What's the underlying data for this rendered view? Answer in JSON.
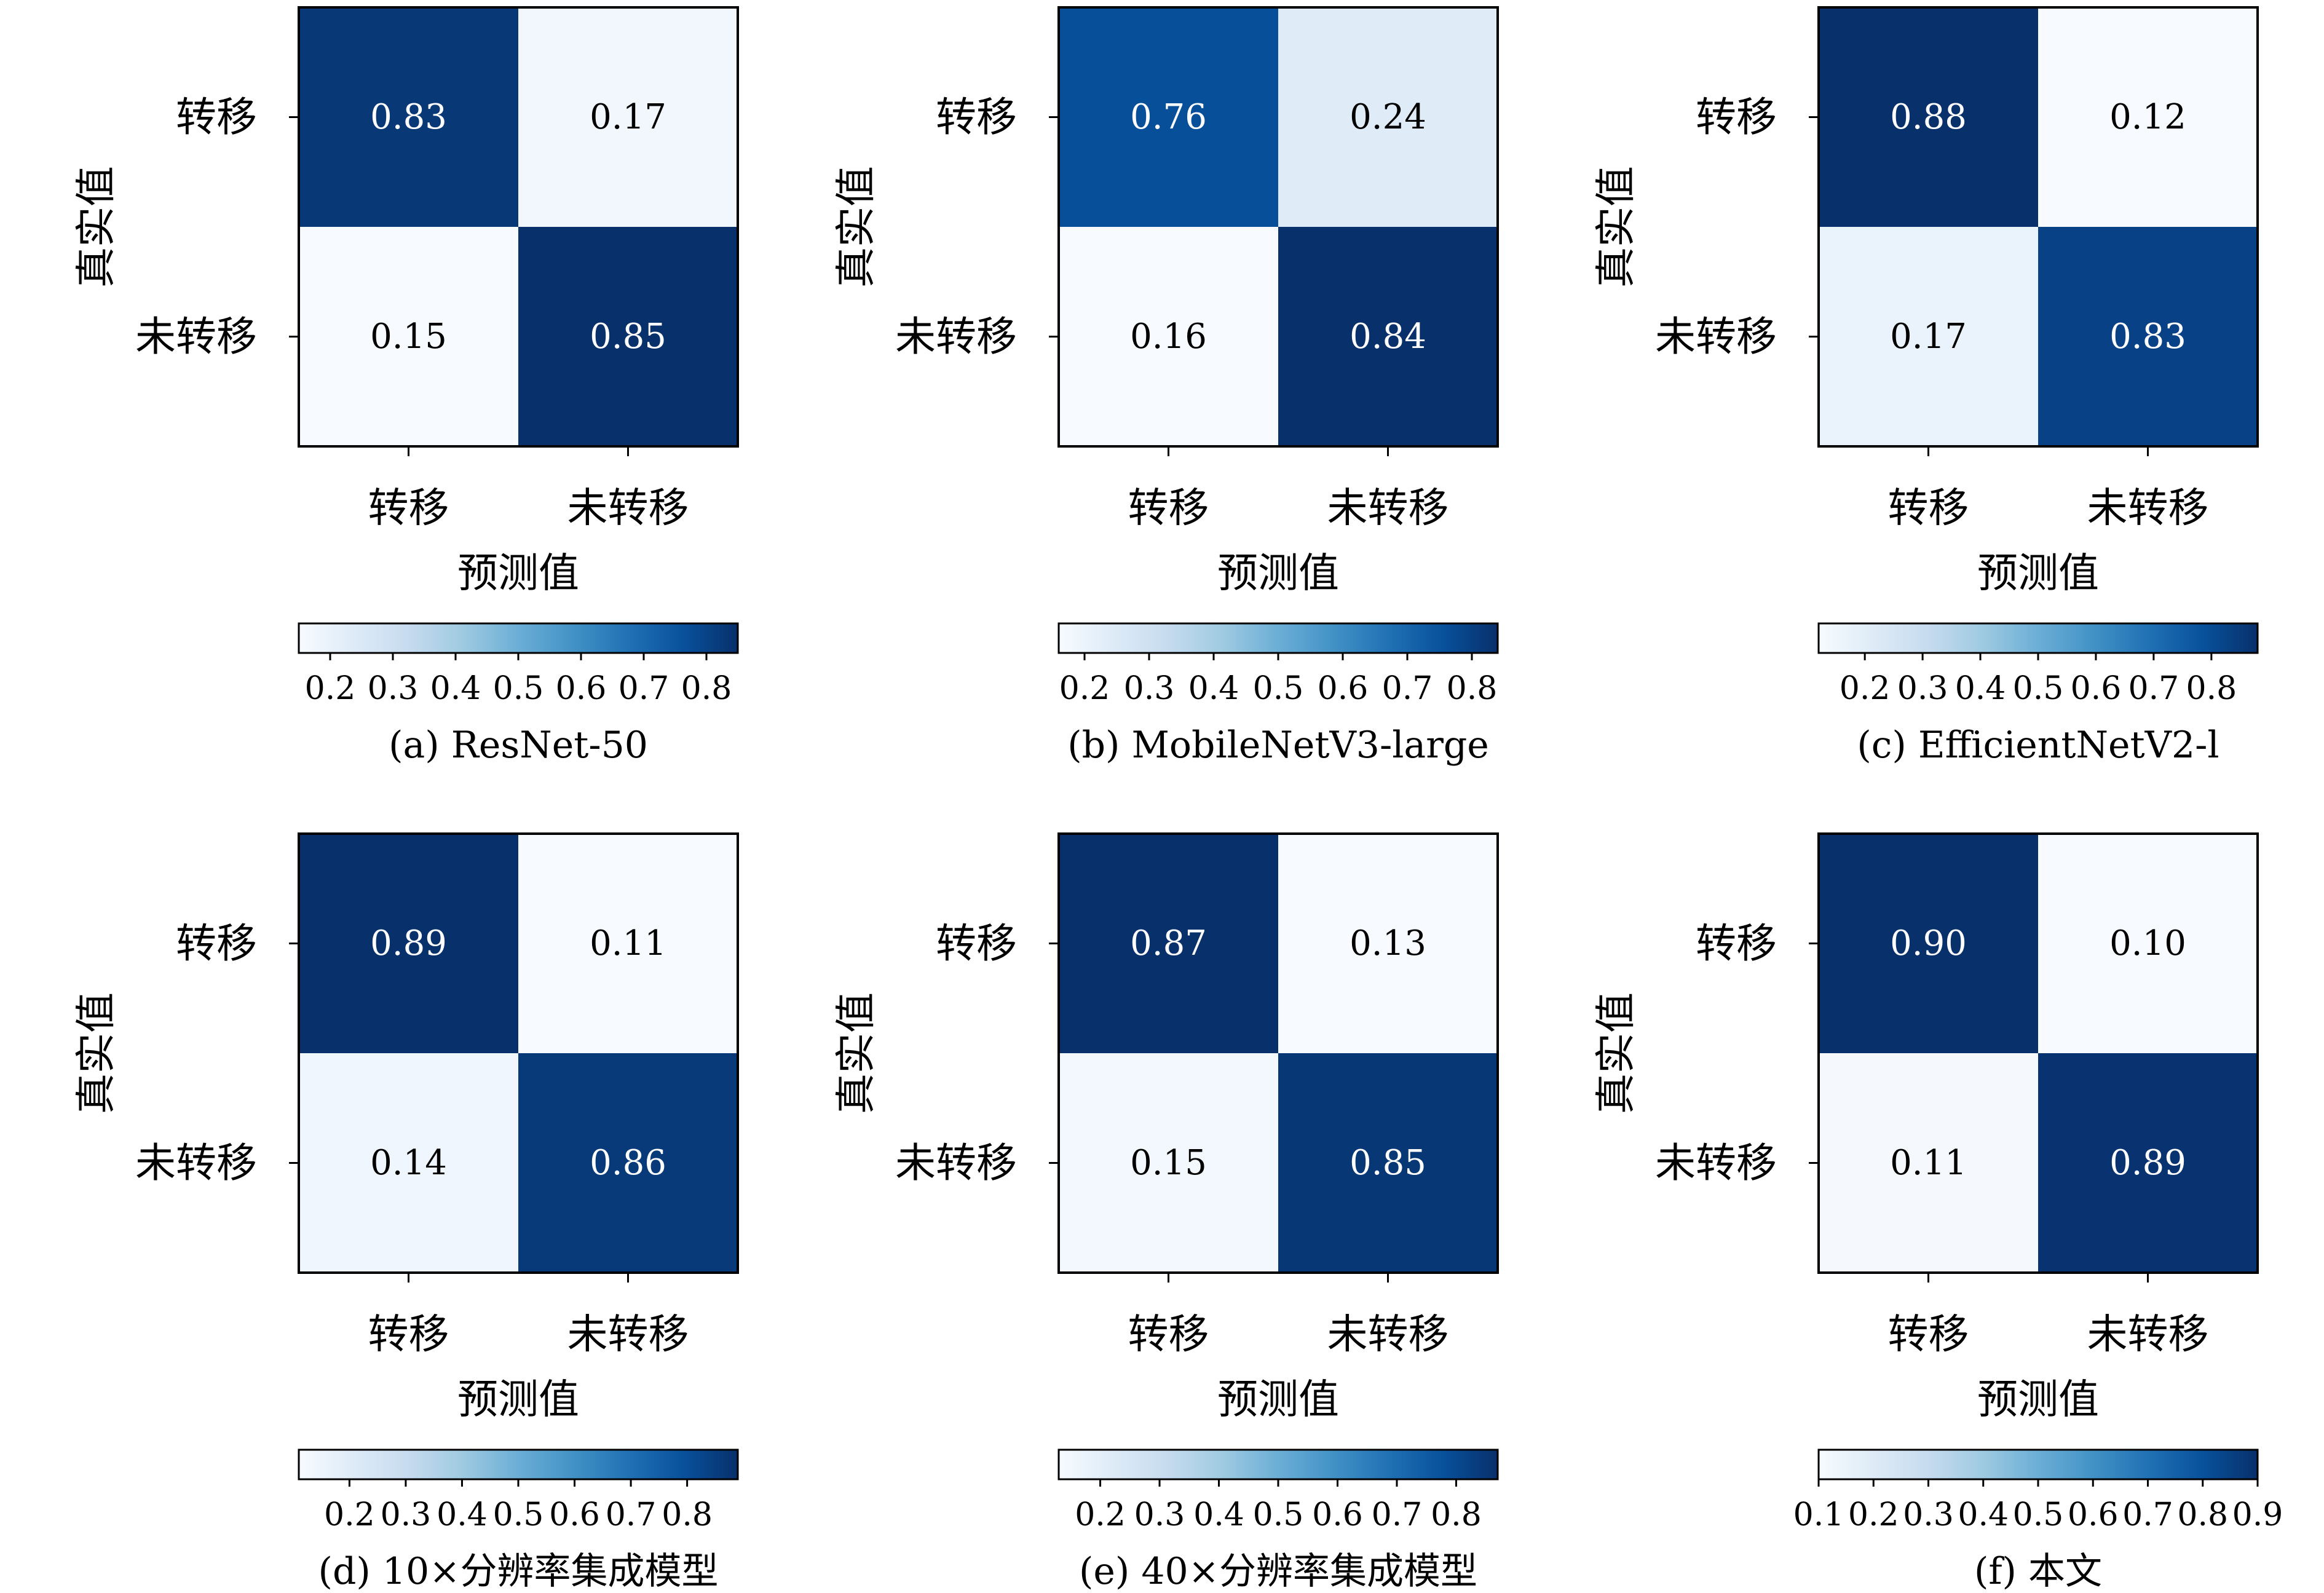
{
  "colormap": {
    "name": "Blues",
    "stops": [
      "#f7fbff",
      "#deebf7",
      "#c6dbef",
      "#9ecae1",
      "#6baed6",
      "#4292c6",
      "#2171b5",
      "#08519c",
      "#08306b"
    ],
    "frame_color": "#000000"
  },
  "chart_data": [
    {
      "type": "heatmap",
      "caption": "(a) ResNet-50",
      "xlabel": "预测值",
      "ylabel": "真实值",
      "x_categories": [
        "转移",
        "未转移"
      ],
      "y_categories": [
        "转移",
        "未转移"
      ],
      "values": [
        [
          0.83,
          0.17
        ],
        [
          0.15,
          0.85
        ]
      ],
      "cell_labels": [
        [
          "0.83",
          "0.17"
        ],
        [
          "0.15",
          "0.85"
        ]
      ],
      "colorbar": {
        "range": [
          0.15,
          0.85
        ],
        "ticks": [
          0.2,
          0.3,
          0.4,
          0.5,
          0.6,
          0.7,
          0.8
        ],
        "tick_labels": [
          "0.2",
          "0.3",
          "0.4",
          "0.5",
          "0.6",
          "0.7",
          "0.8"
        ],
        "orientation": "horizontal",
        "placement": "bottom"
      }
    },
    {
      "type": "heatmap",
      "caption": "(b) MobileNetV3-large",
      "xlabel": "预测值",
      "ylabel": "真实值",
      "x_categories": [
        "转移",
        "未转移"
      ],
      "y_categories": [
        "转移",
        "未转移"
      ],
      "values": [
        [
          0.76,
          0.24
        ],
        [
          0.16,
          0.84
        ]
      ],
      "cell_labels": [
        [
          "0.76",
          "0.24"
        ],
        [
          "0.16",
          "0.84"
        ]
      ],
      "colorbar": {
        "range": [
          0.16,
          0.84
        ],
        "ticks": [
          0.2,
          0.3,
          0.4,
          0.5,
          0.6,
          0.7,
          0.8
        ],
        "tick_labels": [
          "0.2",
          "0.3",
          "0.4",
          "0.5",
          "0.6",
          "0.7",
          "0.8"
        ],
        "orientation": "horizontal",
        "placement": "bottom"
      }
    },
    {
      "type": "heatmap",
      "caption": "(c) EfficientNetV2-l",
      "xlabel": "预测值",
      "ylabel": "真实值",
      "x_categories": [
        "转移",
        "未转移"
      ],
      "y_categories": [
        "转移",
        "未转移"
      ],
      "values": [
        [
          0.88,
          0.12
        ],
        [
          0.17,
          0.83
        ]
      ],
      "cell_labels": [
        [
          "0.88",
          "0.12"
        ],
        [
          "0.17",
          "0.83"
        ]
      ],
      "colorbar": {
        "range": [
          0.12,
          0.88
        ],
        "ticks": [
          0.2,
          0.3,
          0.4,
          0.5,
          0.6,
          0.7,
          0.8
        ],
        "tick_labels": [
          "0.2",
          "0.3",
          "0.4",
          "0.5",
          "0.6",
          "0.7",
          "0.8"
        ],
        "orientation": "horizontal",
        "placement": "bottom"
      }
    },
    {
      "type": "heatmap",
      "caption": "(d) 10×分辨率集成模型",
      "xlabel": "预测值",
      "ylabel": "真实值",
      "x_categories": [
        "转移",
        "未转移"
      ],
      "y_categories": [
        "转移",
        "未转移"
      ],
      "values": [
        [
          0.89,
          0.11
        ],
        [
          0.14,
          0.86
        ]
      ],
      "cell_labels": [
        [
          "0.89",
          "0.11"
        ],
        [
          "0.14",
          "0.86"
        ]
      ],
      "colorbar": {
        "range": [
          0.11,
          0.89
        ],
        "ticks": [
          0.2,
          0.3,
          0.4,
          0.5,
          0.6,
          0.7,
          0.8
        ],
        "tick_labels": [
          "0.2",
          "0.3",
          "0.4",
          "0.5",
          "0.6",
          "0.7",
          "0.8"
        ],
        "orientation": "horizontal",
        "placement": "bottom"
      }
    },
    {
      "type": "heatmap",
      "caption": "(e) 40×分辨率集成模型",
      "xlabel": "预测值",
      "ylabel": "真实值",
      "x_categories": [
        "转移",
        "未转移"
      ],
      "y_categories": [
        "转移",
        "未转移"
      ],
      "values": [
        [
          0.87,
          0.13
        ],
        [
          0.15,
          0.85
        ]
      ],
      "cell_labels": [
        [
          "0.87",
          "0.13"
        ],
        [
          "0.15",
          "0.85"
        ]
      ],
      "colorbar": {
        "range": [
          0.13,
          0.87
        ],
        "ticks": [
          0.2,
          0.3,
          0.4,
          0.5,
          0.6,
          0.7,
          0.8
        ],
        "tick_labels": [
          "0.2",
          "0.3",
          "0.4",
          "0.5",
          "0.6",
          "0.7",
          "0.8"
        ],
        "orientation": "horizontal",
        "placement": "bottom"
      }
    },
    {
      "type": "heatmap",
      "caption": "(f) 本文",
      "xlabel": "预测值",
      "ylabel": "真实值",
      "x_categories": [
        "转移",
        "未转移"
      ],
      "y_categories": [
        "转移",
        "未转移"
      ],
      "values": [
        [
          0.9,
          0.1
        ],
        [
          0.11,
          0.89
        ]
      ],
      "cell_labels": [
        [
          "0.90",
          "0.10"
        ],
        [
          "0.11",
          "0.89"
        ]
      ],
      "colorbar": {
        "range": [
          0.1,
          0.9
        ],
        "ticks": [
          0.1,
          0.2,
          0.3,
          0.4,
          0.5,
          0.6,
          0.7,
          0.8,
          0.9
        ],
        "tick_labels": [
          "0.1",
          "0.2",
          "0.3",
          "0.4",
          "0.5",
          "0.6",
          "0.7",
          "0.8",
          "0.9"
        ],
        "orientation": "horizontal",
        "placement": "bottom"
      }
    }
  ]
}
